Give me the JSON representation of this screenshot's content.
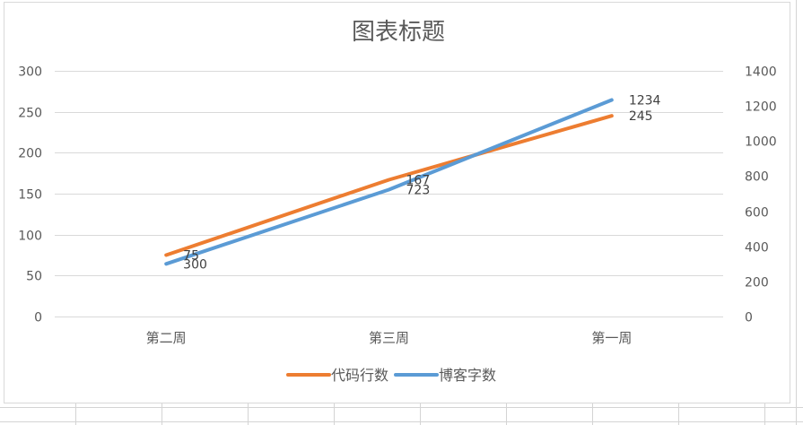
{
  "chart_data": {
    "type": "line",
    "title": "图表标题",
    "categories": [
      "第二周",
      "第三周",
      "第一周"
    ],
    "y_left": {
      "ticks": [
        "0",
        "50",
        "100",
        "150",
        "200",
        "250",
        "300"
      ],
      "ylim": [
        0,
        300
      ]
    },
    "y_right": {
      "ticks": [
        "0",
        "200",
        "400",
        "600",
        "800",
        "1000",
        "1200",
        "1400"
      ],
      "ylim": [
        0,
        1400
      ]
    },
    "series": [
      {
        "name": "代码行数",
        "axis": "left",
        "color": "#ED7D31",
        "values": [
          75,
          167,
          245
        ],
        "labels": [
          "75",
          "167",
          "245"
        ]
      },
      {
        "name": "博客字数",
        "axis": "right",
        "color": "#5B9BD5",
        "values": [
          300,
          723,
          1234
        ],
        "labels": [
          "300",
          "723",
          "1234"
        ]
      }
    ],
    "grid": true,
    "legend": "bottom"
  }
}
